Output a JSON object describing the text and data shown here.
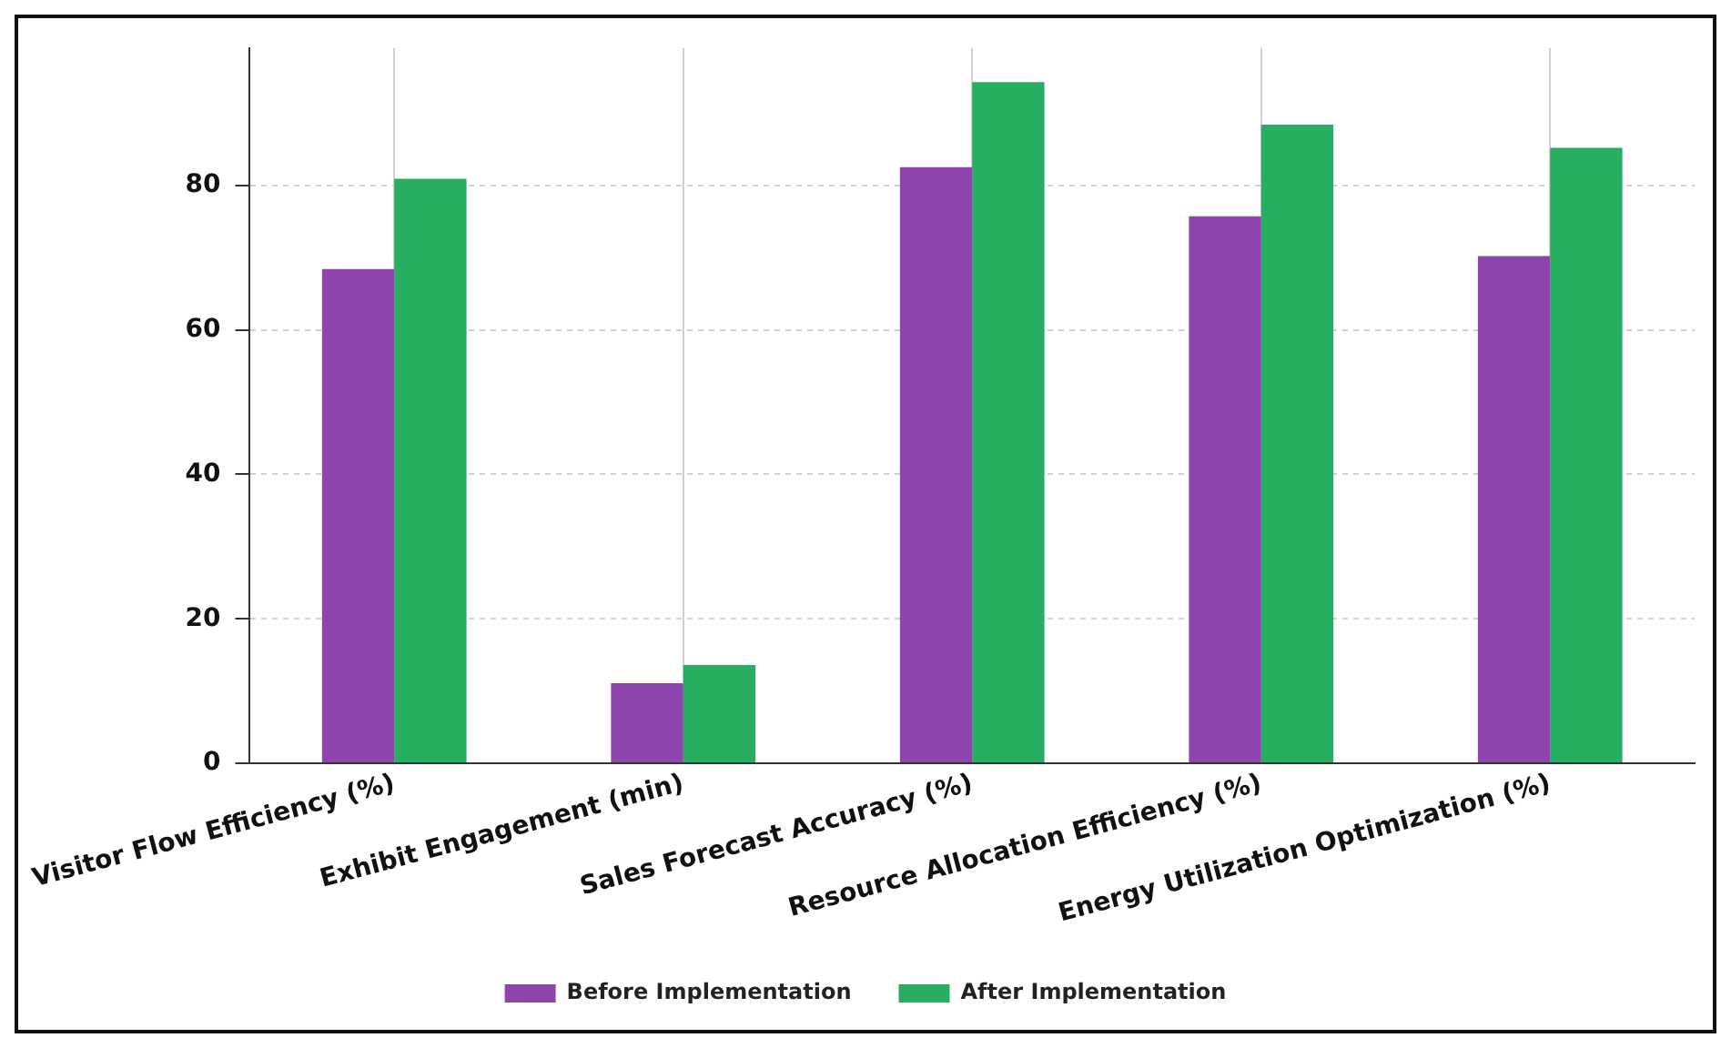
{
  "chart_data": {
    "type": "bar",
    "categories": [
      "Visitor Flow Efficiency (%)",
      "Exhibit Engagement (min)",
      "Sales Forecast Accuracy (%)",
      "Resource Allocation Efficiency (%)",
      "Energy Utilization Optimization (%)"
    ],
    "series": [
      {
        "name": "Before Implementation",
        "color": "#8e44ad",
        "values": [
          68.4,
          11.1,
          82.5,
          75.7,
          70.2
        ]
      },
      {
        "name": "After Implementation",
        "color": "#27ae60",
        "values": [
          80.9,
          13.6,
          94.3,
          88.4,
          85.2
        ]
      }
    ],
    "ylim": [
      0,
      99
    ],
    "yticks": [
      0,
      20,
      40,
      60,
      80
    ],
    "grid": true,
    "legend": "bottom"
  }
}
